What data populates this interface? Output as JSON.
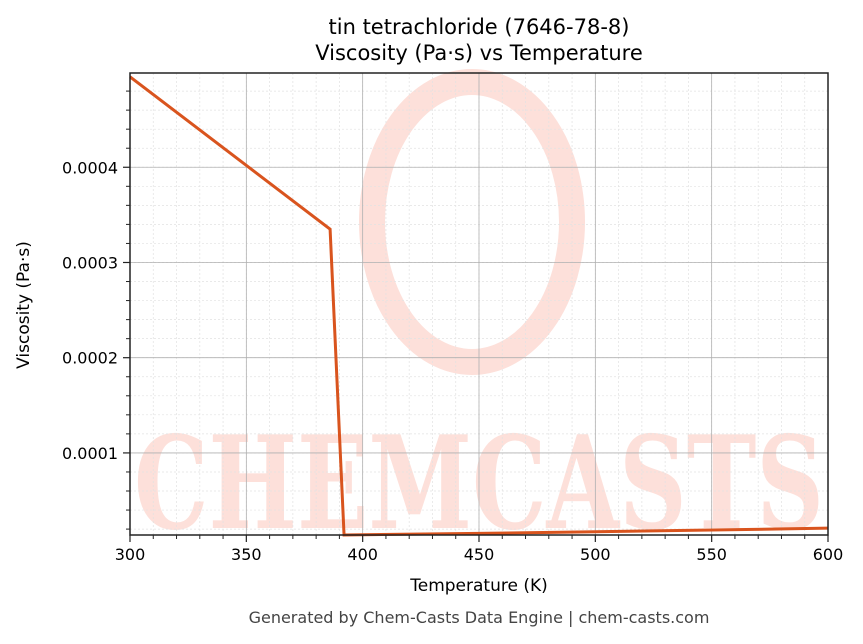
{
  "chart": {
    "title_line1": "tin tetrachloride (7646-78-8)",
    "title_line2": "Viscosity (Pa·s) vs Temperature",
    "xlabel": "Temperature (K)",
    "ylabel": "Viscosity (Pa·s)",
    "footer": "Generated by Chem-Casts Data Engine | chem-casts.com",
    "watermark": "CHEMCASTS",
    "line_color": "#d9541e",
    "watermark_color": "#fde0da"
  },
  "chart_data": {
    "type": "line",
    "title": "tin tetrachloride (7646-78-8) Viscosity (Pa·s) vs Temperature",
    "xlabel": "Temperature (K)",
    "ylabel": "Viscosity (Pa·s)",
    "xlim": [
      300,
      600
    ],
    "ylim": [
      1.38e-05,
      0.000499
    ],
    "xticks": [
      300,
      350,
      400,
      450,
      500,
      550,
      600
    ],
    "yticks": [
      0.0001,
      0.0002,
      0.0003,
      0.0004
    ],
    "xtick_labels": [
      "300",
      "350",
      "400",
      "450",
      "500",
      "550",
      "600"
    ],
    "ytick_labels": [
      "0.0001",
      "0.0002",
      "0.0003",
      "0.0004"
    ],
    "grid": true,
    "legend": null,
    "series": [
      {
        "name": "Viscosity",
        "color": "#d9541e",
        "x": [
          300,
          386,
          392,
          450,
          500,
          550,
          600
        ],
        "y": [
          0.000495,
          0.000335,
          1.38e-05,
          1.55e-05,
          1.72e-05,
          1.9e-05,
          2.1e-05
        ]
      }
    ]
  }
}
